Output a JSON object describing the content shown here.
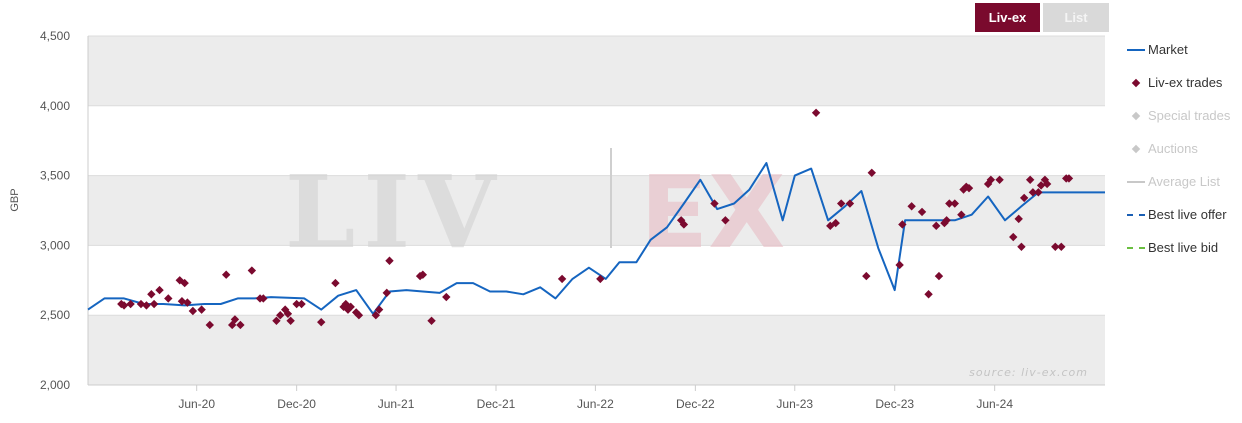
{
  "buttons": {
    "livex_label": "Liv-ex",
    "list_label": "List"
  },
  "colors": {
    "market": "#1565c0",
    "trades": "#7b0a2f",
    "best_offer": "#1a5fb4",
    "best_bid": "#6abf40",
    "disabled": "#c8c8c8",
    "band": "#ececec"
  },
  "legend": [
    {
      "label": "Market",
      "style": "line",
      "color": "#1565c0",
      "enabled": true
    },
    {
      "label": "Liv-ex trades",
      "style": "diamond",
      "color": "#7b0a2f",
      "enabled": true
    },
    {
      "label": "Special trades",
      "style": "diamond",
      "color": "#c8c8c8",
      "enabled": false
    },
    {
      "label": "Auctions",
      "style": "diamond",
      "color": "#c8c8c8",
      "enabled": false
    },
    {
      "label": "Average List",
      "style": "line",
      "color": "#c8c8c8",
      "enabled": false
    },
    {
      "label": "Best live offer",
      "style": "dash",
      "color": "#1a5fb4",
      "enabled": true
    },
    {
      "label": "Best live bid",
      "style": "dash",
      "color": "#6abf40",
      "enabled": true
    }
  ],
  "watermark": {
    "left": "LIV",
    "right": "EX"
  },
  "source_note": "source: liv-ex.com",
  "chart_data": {
    "type": "line",
    "ylabel": "GBP",
    "xlabel": "",
    "ylim": [
      2000,
      4500
    ],
    "yticks": [
      {
        "value": 2000,
        "label": "2,000"
      },
      {
        "value": 2500,
        "label": "2,500"
      },
      {
        "value": 3000,
        "label": "3,000"
      },
      {
        "value": 3500,
        "label": "3,500"
      },
      {
        "value": 4000,
        "label": "4,000"
      },
      {
        "value": 4500,
        "label": "4,500"
      }
    ],
    "xlim": [
      "2019-11-15",
      "2024-12-20"
    ],
    "xticks": [
      {
        "value": "2020-06-01",
        "label": "Jun-20"
      },
      {
        "value": "2020-12-01",
        "label": "Dec-20"
      },
      {
        "value": "2021-06-01",
        "label": "Jun-21"
      },
      {
        "value": "2021-12-01",
        "label": "Dec-21"
      },
      {
        "value": "2022-06-01",
        "label": "Jun-22"
      },
      {
        "value": "2022-12-01",
        "label": "Dec-22"
      },
      {
        "value": "2023-06-01",
        "label": "Jun-23"
      },
      {
        "value": "2023-12-01",
        "label": "Dec-23"
      },
      {
        "value": "2024-06-01",
        "label": "Jun-24"
      }
    ],
    "grid": true,
    "legend_position": "right",
    "series": [
      {
        "name": "Market",
        "style": "line",
        "points": [
          [
            "2019-11-15",
            2540
          ],
          [
            "2019-12-15",
            2620
          ],
          [
            "2020-01-20",
            2620
          ],
          [
            "2020-02-25",
            2580
          ],
          [
            "2020-04-01",
            2580
          ],
          [
            "2020-05-10",
            2570
          ],
          [
            "2020-06-15",
            2580
          ],
          [
            "2020-07-15",
            2580
          ],
          [
            "2020-08-15",
            2620
          ],
          [
            "2020-09-15",
            2620
          ],
          [
            "2020-10-15",
            2630
          ],
          [
            "2020-11-15",
            2625
          ],
          [
            "2020-12-15",
            2620
          ],
          [
            "2021-01-15",
            2540
          ],
          [
            "2021-02-15",
            2640
          ],
          [
            "2021-03-20",
            2680
          ],
          [
            "2021-04-20",
            2510
          ],
          [
            "2021-05-20",
            2670
          ],
          [
            "2021-06-20",
            2680
          ],
          [
            "2021-07-20",
            2670
          ],
          [
            "2021-08-20",
            2660
          ],
          [
            "2021-09-20",
            2730
          ],
          [
            "2021-10-20",
            2730
          ],
          [
            "2021-11-20",
            2670
          ],
          [
            "2021-12-20",
            2670
          ],
          [
            "2022-01-20",
            2650
          ],
          [
            "2022-02-20",
            2700
          ],
          [
            "2022-03-20",
            2620
          ],
          [
            "2022-04-20",
            2760
          ],
          [
            "2022-05-20",
            2840
          ],
          [
            "2022-06-20",
            2760
          ],
          [
            "2022-07-15",
            2880
          ],
          [
            "2022-08-15",
            2880
          ],
          [
            "2022-09-10",
            3040
          ],
          [
            "2022-10-10",
            3130
          ],
          [
            "2022-11-10",
            3300
          ],
          [
            "2022-12-10",
            3470
          ],
          [
            "2023-01-10",
            3260
          ],
          [
            "2023-02-10",
            3300
          ],
          [
            "2023-03-10",
            3400
          ],
          [
            "2023-04-10",
            3590
          ],
          [
            "2023-05-10",
            3180
          ],
          [
            "2023-06-01",
            3500
          ],
          [
            "2023-07-01",
            3550
          ],
          [
            "2023-08-01",
            3180
          ],
          [
            "2023-09-01",
            3280
          ],
          [
            "2023-10-01",
            3390
          ],
          [
            "2023-11-01",
            2980
          ],
          [
            "2023-12-01",
            2680
          ],
          [
            "2023-12-20",
            3180
          ],
          [
            "2024-01-20",
            3180
          ],
          [
            "2024-02-20",
            3180
          ],
          [
            "2024-03-20",
            3180
          ],
          [
            "2024-04-20",
            3220
          ],
          [
            "2024-05-20",
            3350
          ],
          [
            "2024-06-20",
            3180
          ],
          [
            "2024-07-20",
            3280
          ],
          [
            "2024-08-20",
            3380
          ],
          [
            "2024-09-20",
            3380
          ],
          [
            "2024-10-20",
            3380
          ],
          [
            "2024-12-20",
            3380
          ]
        ]
      },
      {
        "name": "Liv-ex trades",
        "style": "scatter",
        "points": [
          [
            "2020-01-15",
            2580
          ],
          [
            "2020-01-20",
            2570
          ],
          [
            "2020-02-01",
            2580
          ],
          [
            "2020-02-20",
            2580
          ],
          [
            "2020-03-01",
            2570
          ],
          [
            "2020-03-10",
            2650
          ],
          [
            "2020-03-15",
            2580
          ],
          [
            "2020-03-25",
            2680
          ],
          [
            "2020-04-10",
            2620
          ],
          [
            "2020-05-01",
            2750
          ],
          [
            "2020-05-05",
            2600
          ],
          [
            "2020-05-10",
            2730
          ],
          [
            "2020-05-15",
            2590
          ],
          [
            "2020-05-25",
            2530
          ],
          [
            "2020-06-10",
            2540
          ],
          [
            "2020-06-25",
            2430
          ],
          [
            "2020-07-25",
            2790
          ],
          [
            "2020-08-05",
            2430
          ],
          [
            "2020-08-10",
            2470
          ],
          [
            "2020-08-20",
            2430
          ],
          [
            "2020-09-10",
            2820
          ],
          [
            "2020-09-25",
            2620
          ],
          [
            "2020-10-01",
            2620
          ],
          [
            "2020-10-25",
            2460
          ],
          [
            "2020-11-01",
            2500
          ],
          [
            "2020-11-10",
            2540
          ],
          [
            "2020-11-15",
            2510
          ],
          [
            "2020-11-20",
            2460
          ],
          [
            "2020-12-01",
            2580
          ],
          [
            "2020-12-10",
            2580
          ],
          [
            "2021-01-15",
            2450
          ],
          [
            "2021-02-10",
            2730
          ],
          [
            "2021-02-25",
            2560
          ],
          [
            "2021-03-01",
            2580
          ],
          [
            "2021-03-05",
            2540
          ],
          [
            "2021-03-10",
            2560
          ],
          [
            "2021-03-20",
            2520
          ],
          [
            "2021-03-25",
            2500
          ],
          [
            "2021-04-25",
            2500
          ],
          [
            "2021-05-01",
            2540
          ],
          [
            "2021-05-15",
            2660
          ],
          [
            "2021-05-20",
            2890
          ],
          [
            "2021-07-15",
            2780
          ],
          [
            "2021-07-20",
            2790
          ],
          [
            "2021-08-05",
            2460
          ],
          [
            "2021-09-01",
            2630
          ],
          [
            "2022-04-01",
            2760
          ],
          [
            "2022-06-10",
            2760
          ],
          [
            "2022-11-05",
            3180
          ],
          [
            "2022-11-10",
            3150
          ],
          [
            "2023-01-05",
            3300
          ],
          [
            "2023-01-25",
            3180
          ],
          [
            "2023-07-10",
            3950
          ],
          [
            "2023-08-05",
            3140
          ],
          [
            "2023-08-15",
            3160
          ],
          [
            "2023-08-25",
            3300
          ],
          [
            "2023-09-10",
            3300
          ],
          [
            "2023-10-10",
            2780
          ],
          [
            "2023-10-20",
            3520
          ],
          [
            "2023-12-10",
            2860
          ],
          [
            "2023-12-15",
            3150
          ],
          [
            "2024-01-01",
            3280
          ],
          [
            "2024-01-20",
            3240
          ],
          [
            "2024-02-01",
            2650
          ],
          [
            "2024-02-15",
            3140
          ],
          [
            "2024-02-20",
            2780
          ],
          [
            "2024-03-01",
            3160
          ],
          [
            "2024-03-05",
            3180
          ],
          [
            "2024-03-10",
            3300
          ],
          [
            "2024-03-20",
            3300
          ],
          [
            "2024-04-01",
            3220
          ],
          [
            "2024-04-05",
            3400
          ],
          [
            "2024-04-10",
            3420
          ],
          [
            "2024-04-15",
            3410
          ],
          [
            "2024-05-20",
            3440
          ],
          [
            "2024-05-25",
            3470
          ],
          [
            "2024-06-10",
            3470
          ],
          [
            "2024-07-05",
            3060
          ],
          [
            "2024-07-15",
            3190
          ],
          [
            "2024-07-20",
            2990
          ],
          [
            "2024-07-25",
            3340
          ],
          [
            "2024-08-05",
            3470
          ],
          [
            "2024-08-10",
            3380
          ],
          [
            "2024-08-20",
            3380
          ],
          [
            "2024-08-25",
            3430
          ],
          [
            "2024-09-01",
            3470
          ],
          [
            "2024-09-05",
            3440
          ],
          [
            "2024-09-20",
            2990
          ],
          [
            "2024-10-01",
            2990
          ],
          [
            "2024-10-10",
            3480
          ],
          [
            "2024-10-15",
            3480
          ]
        ]
      }
    ]
  }
}
